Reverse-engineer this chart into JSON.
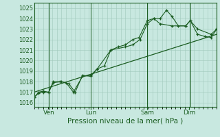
{
  "title": "Pression niveau de la mer( hPa )",
  "yticks": [
    1016,
    1017,
    1018,
    1019,
    1020,
    1021,
    1022,
    1023,
    1024,
    1025
  ],
  "ylim": [
    1015.6,
    1025.5
  ],
  "bg_color": "#c8e8e0",
  "grid_color": "#a0c8bc",
  "line_color": "#1a5c20",
  "xtick_labels": [
    "Ven",
    "Lun",
    "Sam",
    "Dim"
  ],
  "xtick_pos": [
    0.08,
    0.31,
    0.62,
    0.85
  ],
  "xlim": [
    0.0,
    1.0
  ],
  "series1_x": [
    0.0,
    0.025,
    0.05,
    0.08,
    0.105,
    0.15,
    0.19,
    0.225,
    0.265,
    0.31,
    0.345,
    0.385,
    0.42,
    0.46,
    0.5,
    0.54,
    0.575,
    0.62,
    0.655,
    0.69,
    0.725,
    0.755,
    0.79,
    0.83,
    0.855,
    0.895,
    0.935,
    0.97,
    1.0
  ],
  "series1_y": [
    1016.5,
    1016.9,
    1017.0,
    1017.0,
    1017.9,
    1018.0,
    1017.8,
    1017.0,
    1018.6,
    1018.5,
    1019.2,
    1019.5,
    1021.0,
    1021.3,
    1021.5,
    1022.0,
    1022.2,
    1023.8,
    1024.0,
    1024.0,
    1024.8,
    1024.2,
    1023.3,
    1023.3,
    1023.8,
    1022.5,
    1022.3,
    1022.2,
    1023.0
  ],
  "series2_x": [
    0.0,
    0.025,
    0.05,
    0.08,
    0.105,
    0.14,
    0.175,
    0.215,
    0.265,
    0.31,
    0.345,
    0.42,
    0.5,
    0.54,
    0.58,
    0.62,
    0.655,
    0.69,
    0.755,
    0.83,
    0.855,
    0.895,
    0.97,
    1.0
  ],
  "series2_y": [
    1016.5,
    1017.0,
    1017.1,
    1017.0,
    1018.0,
    1018.0,
    1017.9,
    1017.0,
    1018.5,
    1018.6,
    1019.2,
    1021.0,
    1021.3,
    1021.5,
    1022.0,
    1023.5,
    1024.0,
    1023.5,
    1023.3,
    1023.3,
    1023.8,
    1023.0,
    1022.5,
    1023.0
  ],
  "trend_x": [
    0.0,
    1.0
  ],
  "trend_y": [
    1017.0,
    1022.5
  ],
  "vline_pos": [
    0.08,
    0.31,
    0.62,
    0.855
  ]
}
